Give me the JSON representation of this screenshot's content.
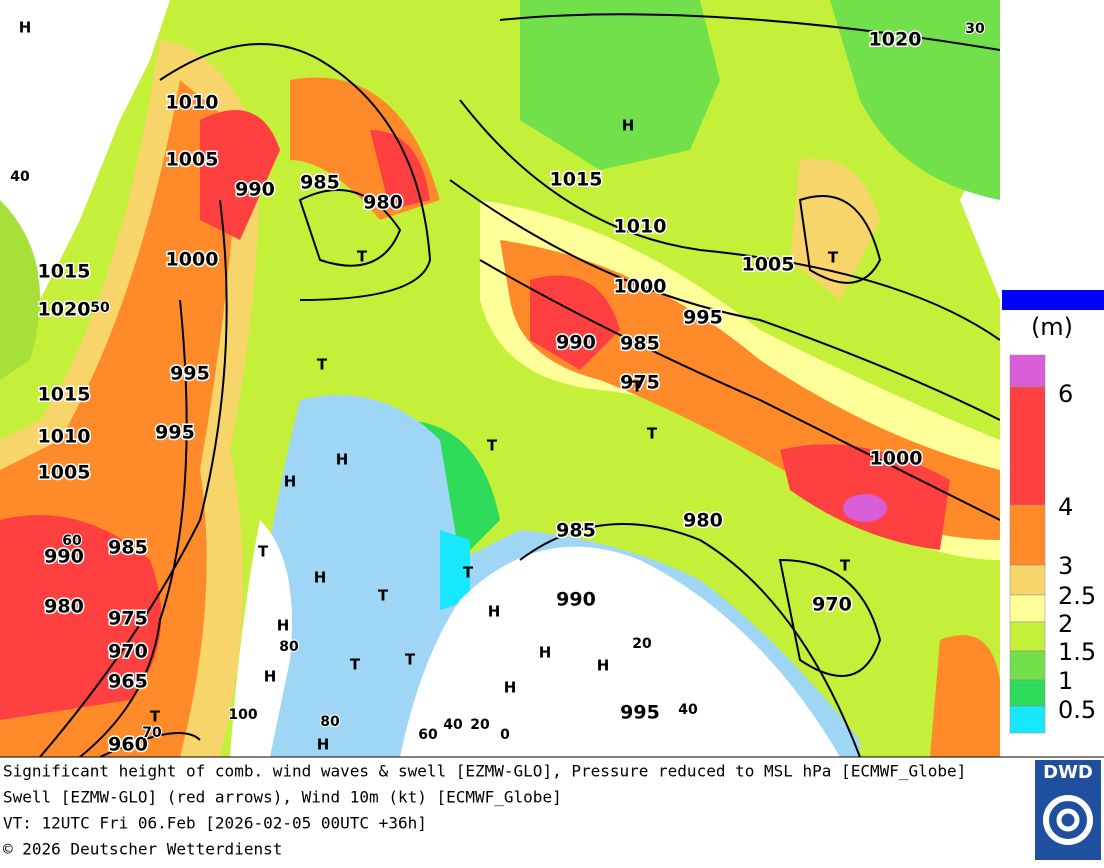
{
  "map": {
    "pressure_labels": [
      "1020",
      "1010",
      "1005",
      "990",
      "985",
      "980",
      "1000",
      "1015",
      "1020",
      "995",
      "1015",
      "1010",
      "995",
      "1005",
      "1015",
      "1010",
      "1005",
      "1000",
      "995",
      "990",
      "985",
      "975",
      "1000",
      "980",
      "985",
      "990",
      "970",
      "995",
      "990",
      "985",
      "980",
      "975",
      "970",
      "965",
      "960"
    ],
    "contour_labels": [
      "30",
      "40",
      "50",
      "60",
      "80",
      "100",
      "70",
      "80",
      "60",
      "40",
      "20",
      "0",
      "20",
      "40"
    ],
    "highs": [
      "H",
      "H",
      "H",
      "H",
      "H",
      "H",
      "H",
      "H",
      "H",
      "H",
      "H",
      "H"
    ],
    "lows": [
      "T",
      "T",
      "T",
      "T",
      "T",
      "T",
      "T",
      "T",
      "T",
      "T",
      "T",
      "T",
      "T"
    ]
  },
  "legend": {
    "unit": "(m)",
    "labels": [
      "6",
      "4",
      "3",
      "2.5",
      "2",
      "1.5",
      "1",
      "0.5"
    ]
  },
  "caption": {
    "lines": [
      "Significant height of comb. wind waves & swell [EZMW-GLO], Pressure reduced to MSL hPa [ECMWF_Globe]",
      "Swell [EZMW-GLO] (red arrows), Wind 10m (kt) [ECMWF_Globe]",
      "VT: 12UTC Fri 06.Feb [2026-02-05 00UTC +36h]",
      "© 2026 Deutscher Wetterdienst"
    ]
  },
  "logo": {
    "text": "DWD"
  }
}
